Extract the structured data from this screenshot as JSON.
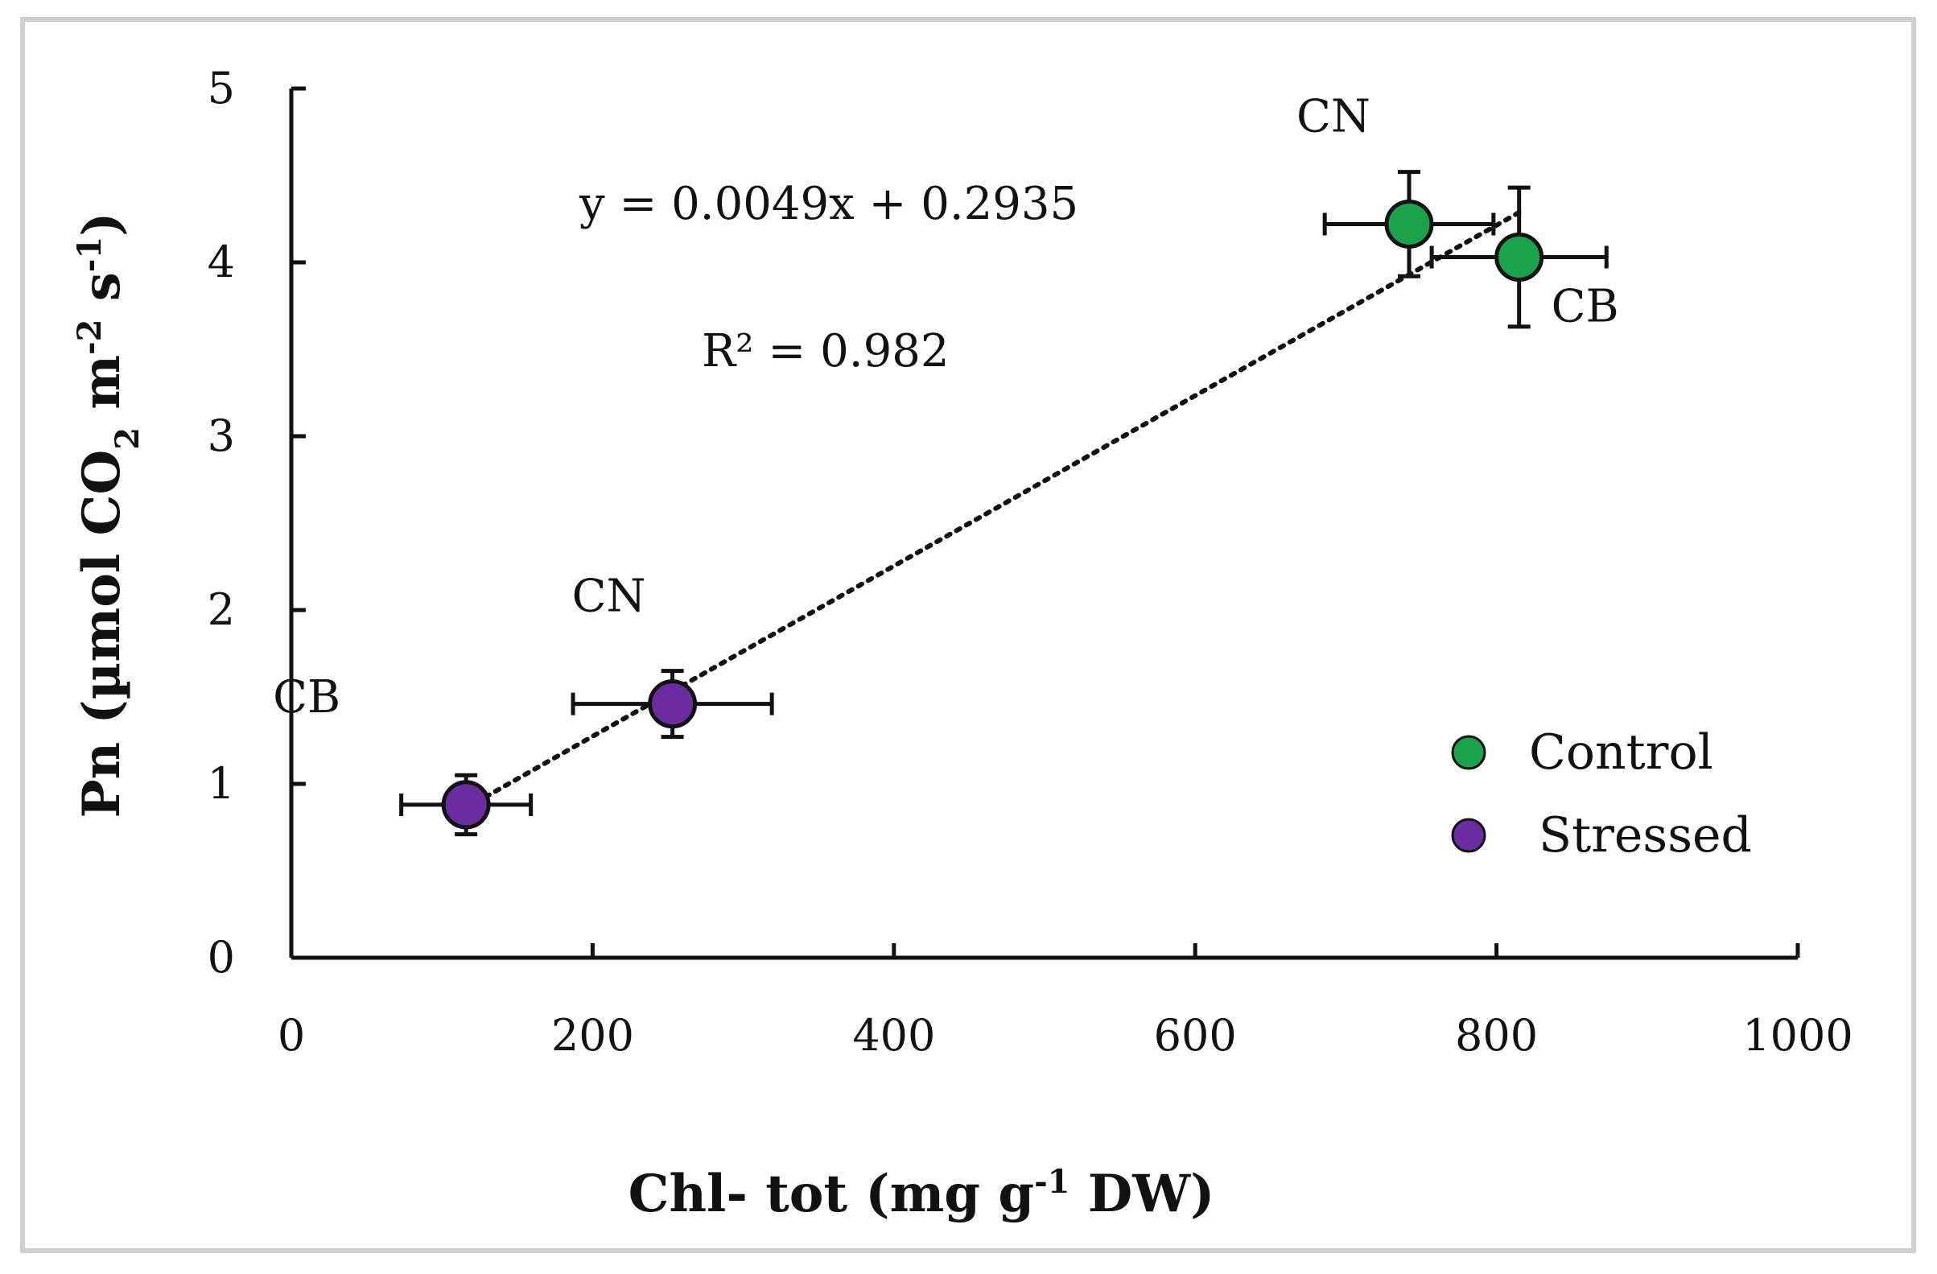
{
  "chart_data": {
    "type": "scatter",
    "xlabel": "Chl- tot (mg g-1 DW)",
    "xlabel_parts": {
      "main": "Chl- tot (mg g",
      "sup": "-1",
      "tail": " DW)"
    },
    "ylabel": "Pn (µmol CO2 m-2 s-1)",
    "ylabel_parts": {
      "a": "Pn (µmol CO",
      "sub": "2",
      "b": " m",
      "sup1": "-2",
      "c": " s",
      "sup2": "-1",
      "d": ")"
    },
    "xlim": [
      0,
      1000
    ],
    "ylim": [
      0,
      5
    ],
    "x_ticks": [
      0,
      200,
      400,
      600,
      800,
      1000
    ],
    "y_ticks": [
      0,
      1,
      2,
      3,
      4,
      5
    ],
    "x_tick_labels": [
      "0",
      "200",
      "400",
      "600",
      "800",
      "1000"
    ],
    "y_tick_labels": [
      "0",
      "1",
      "2",
      "3",
      "4",
      "5"
    ],
    "grid": false,
    "legend_position": "bottom-right",
    "series": [
      {
        "name": "Control",
        "color": "#1aa34a",
        "points": [
          {
            "label": "CN",
            "x": 742,
            "y": 4.22,
            "x_err": 56,
            "y_err": 0.3
          },
          {
            "label": "CB",
            "x": 815,
            "y": 4.03,
            "x_err": 58,
            "y_err": 0.4
          }
        ]
      },
      {
        "name": "Stressed",
        "color": "#6a2c9e",
        "points": [
          {
            "label": "CB",
            "x": 116,
            "y": 0.88,
            "x_err": 43,
            "y_err": 0.17
          },
          {
            "label": "CN",
            "x": 253,
            "y": 1.46,
            "x_err": 66,
            "y_err": 0.19
          }
        ]
      }
    ],
    "trendline": {
      "equation": "y = 0.0049x + 0.2935",
      "r_squared": "R² = 0.982",
      "slope": 0.0049,
      "intercept": 0.2935,
      "x_range": [
        116,
        815
      ],
      "style": "dotted"
    }
  }
}
